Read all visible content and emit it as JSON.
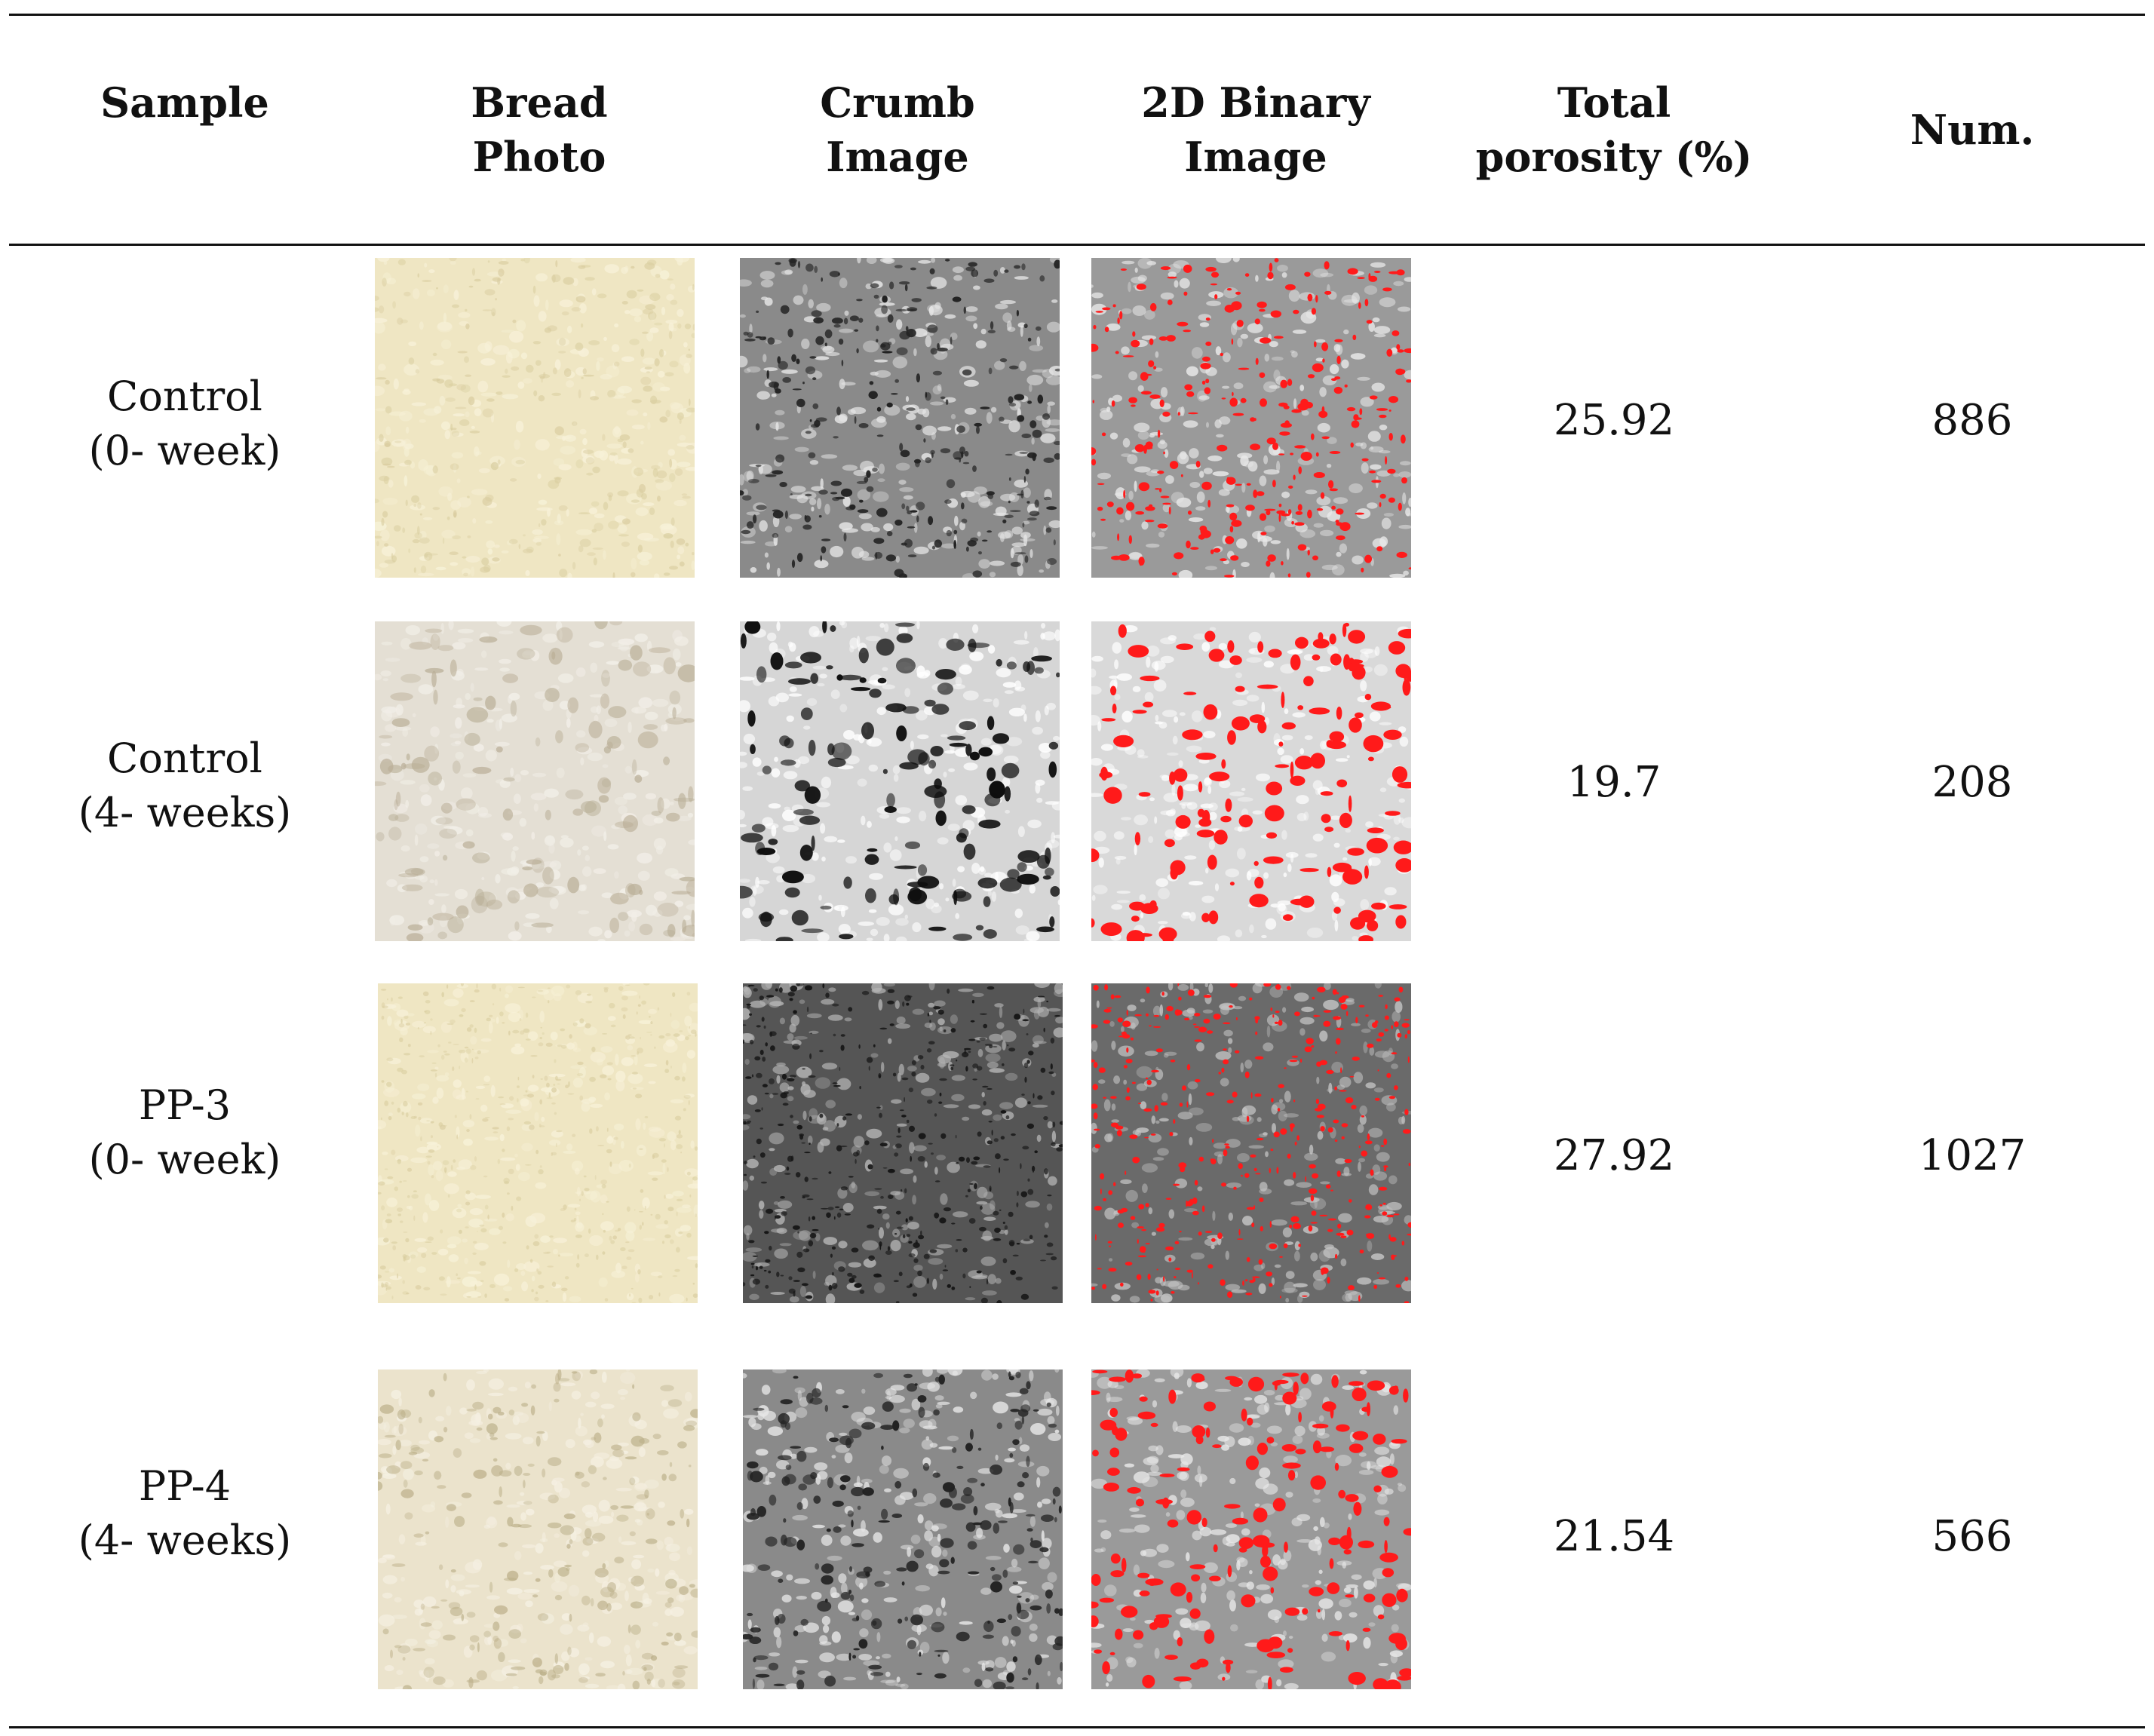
{
  "table": {
    "columns": {
      "sample": "Sample",
      "bread_photo": [
        "Bread",
        "Photo"
      ],
      "crumb_image": [
        "Crumb",
        "Image"
      ],
      "binary_image": [
        "2D Binary",
        "Image"
      ],
      "total_porosity": [
        "Total",
        "porosity (%)"
      ],
      "num": "Num."
    },
    "rows": [
      {
        "sample": [
          "Control",
          "(0- week)"
        ],
        "total_porosity": "25.92",
        "num": "886"
      },
      {
        "sample": [
          "Control",
          "(4- weeks)"
        ],
        "total_porosity": "19.7",
        "num": "208"
      },
      {
        "sample": [
          "PP-3",
          "(0- week)"
        ],
        "total_porosity": "27.92",
        "num": "1027"
      },
      {
        "sample": [
          "PP-4",
          "(4- weeks)"
        ],
        "total_porosity": "21.54",
        "num": "566"
      }
    ]
  },
  "colors": {
    "bread_yellow": "#efe6c3",
    "bread_grey": "#e4dfd4",
    "crumb_dark": "#3a3a3a",
    "crumb_light": "#d0d0d0",
    "binary_red": "#ff1a1a"
  },
  "icons": [
    "bread-photo-image",
    "crumb-grayscale-image",
    "binary-pore-image"
  ]
}
